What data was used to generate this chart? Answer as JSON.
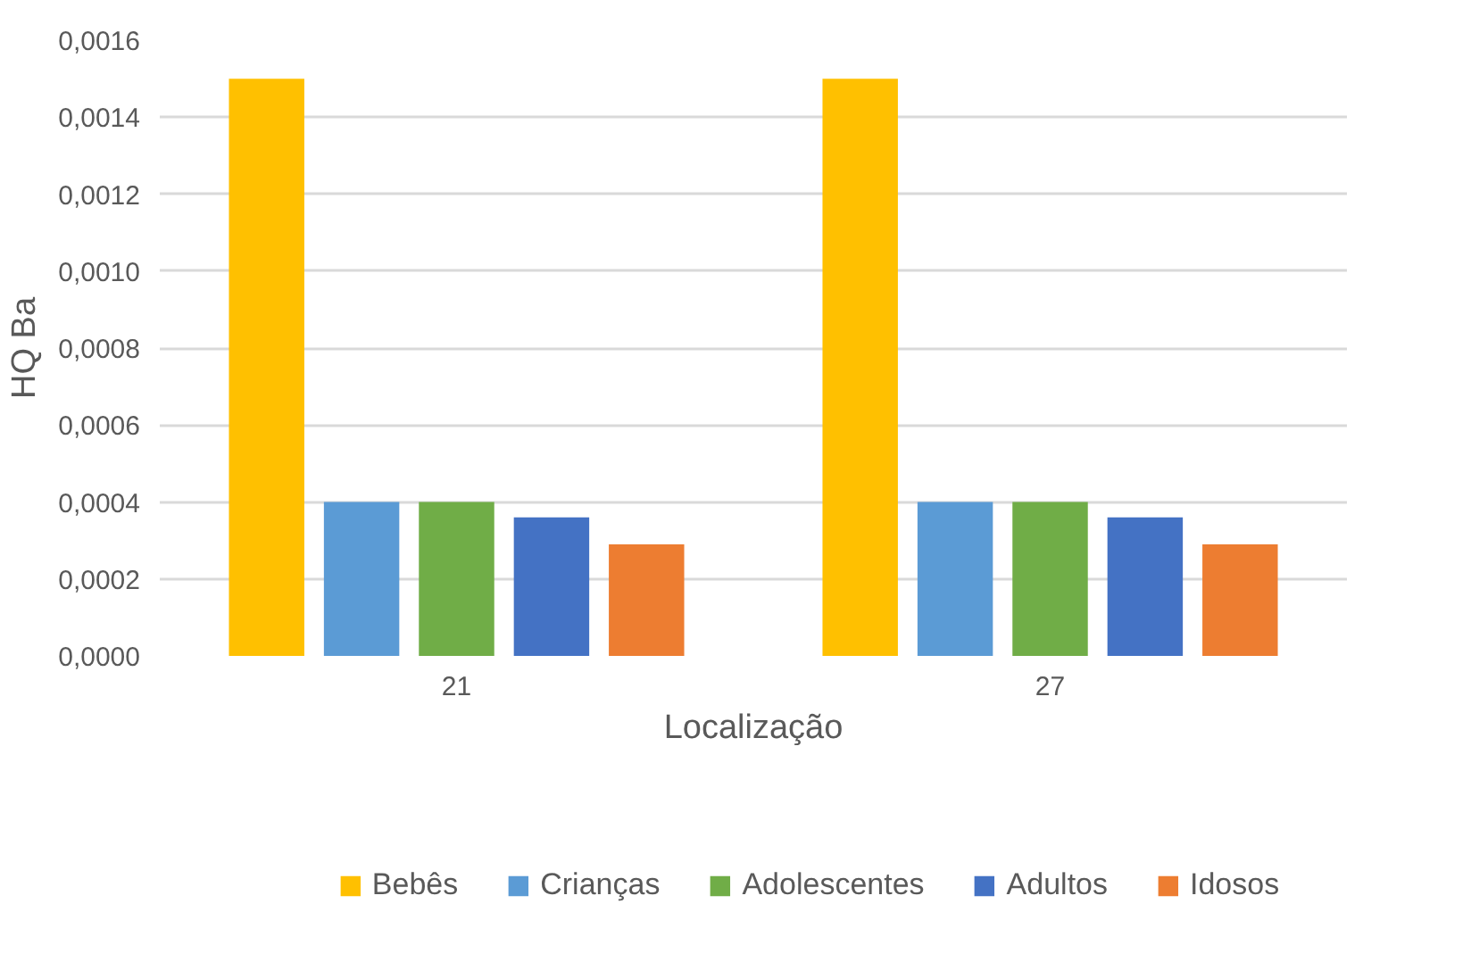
{
  "chart_data": {
    "type": "bar",
    "xlabel": "Localização",
    "ylabel": "HQ Ba",
    "categories": [
      "21",
      "27"
    ],
    "series": [
      {
        "name": "Bebês",
        "color": "#ffc000",
        "values": [
          0.0015,
          0.0015
        ]
      },
      {
        "name": "Crianças",
        "color": "#5b9bd5",
        "values": [
          0.0004,
          0.0004
        ]
      },
      {
        "name": "Adolescentes",
        "color": "#70ad47",
        "values": [
          0.0004,
          0.0004
        ]
      },
      {
        "name": "Adultos",
        "color": "#4472c4",
        "values": [
          0.00036,
          0.00036
        ]
      },
      {
        "name": "Idosos",
        "color": "#ed7d31",
        "values": [
          0.00029,
          0.00029
        ]
      }
    ],
    "ylim": [
      0,
      0.0016
    ],
    "yticks": [
      {
        "value": 0,
        "label": "0,0000"
      },
      {
        "value": 0.0002,
        "label": "0,0002"
      },
      {
        "value": 0.0004,
        "label": "0,0004"
      },
      {
        "value": 0.0006,
        "label": "0,0006"
      },
      {
        "value": 0.0008,
        "label": "0,0008"
      },
      {
        "value": 0.001,
        "label": "0,0010"
      },
      {
        "value": 0.0012,
        "label": "0,0012"
      },
      {
        "value": 0.0014,
        "label": "0,0014"
      },
      {
        "value": 0.0016,
        "label": "0,0016"
      }
    ],
    "grid": "y",
    "legend": "bottom"
  }
}
